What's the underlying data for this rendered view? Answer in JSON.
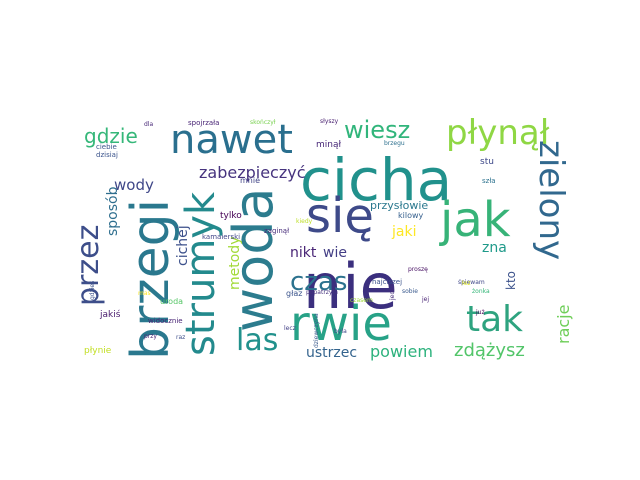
{
  "words": [
    {
      "text": "cicha",
      "color": "#21918c"
    },
    {
      "text": "nie",
      "color": "#3b2f7e"
    },
    {
      "text": "woda",
      "color": "#2c7c8e"
    },
    {
      "text": "brzegi",
      "color": "#2a788e"
    },
    {
      "text": "rwie",
      "color": "#27a287"
    },
    {
      "text": "się",
      "color": "#3e4a89"
    },
    {
      "text": "jak",
      "color": "#37b378"
    },
    {
      "text": "nawet",
      "color": "#2a6f8e"
    },
    {
      "text": "strumyk",
      "color": "#238a8d"
    },
    {
      "text": "zielony",
      "color": "#31688e"
    },
    {
      "text": "płynął",
      "color": "#8fd744"
    },
    {
      "text": "tak",
      "color": "#2ea37f"
    },
    {
      "text": "przez",
      "color": "#3d4e8a"
    },
    {
      "text": "las",
      "color": "#21918c"
    },
    {
      "text": "czas",
      "color": "#2c728e"
    },
    {
      "text": "wiesz",
      "color": "#31b57b"
    },
    {
      "text": "gdzie",
      "color": "#35b779"
    },
    {
      "text": "zdążysz",
      "color": "#52c569"
    },
    {
      "text": "zabezpieczyć",
      "color": "#46337e"
    },
    {
      "text": "racje",
      "color": "#6ece58"
    },
    {
      "text": "wody",
      "color": "#3f4788"
    },
    {
      "text": "sposób",
      "color": "#2e6e8e"
    },
    {
      "text": "cichej",
      "color": "#3c508b"
    },
    {
      "text": "metody",
      "color": "#a2da37"
    },
    {
      "text": "powiem",
      "color": "#2db27d"
    },
    {
      "text": "ustrzec",
      "color": "#33638d"
    },
    {
      "text": "nikt",
      "color": "#482475"
    },
    {
      "text": "wie",
      "color": "#433e85"
    },
    {
      "text": "jaki",
      "color": "#fde725"
    },
    {
      "text": "zna",
      "color": "#1f9a8a"
    },
    {
      "text": "kto",
      "color": "#3b518b"
    },
    {
      "text": "przysłowie",
      "color": "#2a788e"
    },
    {
      "text": "stu",
      "color": "#3e4989"
    },
    {
      "text": "kilowy",
      "color": "#355f8d"
    },
    {
      "text": "najciszej",
      "color": "#3b528b"
    },
    {
      "text": "głaz",
      "color": "#3a538b"
    },
    {
      "text": "tylko",
      "color": "#440154"
    },
    {
      "text": "mnie",
      "color": "#414487"
    },
    {
      "text": "minął",
      "color": "#482878"
    },
    {
      "text": "zaginął",
      "color": "#472c7a"
    },
    {
      "text": "kamaierski",
      "color": "#404588"
    },
    {
      "text": "kiedy",
      "color": "#bddf26"
    },
    {
      "text": "jakiś",
      "color": "#481b6d"
    },
    {
      "text": "uroda",
      "color": "#56c667"
    },
    {
      "text": "widocznie",
      "color": "#482475"
    },
    {
      "text": "płynie",
      "color": "#c2df23"
    },
    {
      "text": "ciebie",
      "color": "#3a548c"
    },
    {
      "text": "dzisiaj",
      "color": "#3a538b"
    },
    {
      "text": "spojrzała",
      "color": "#482475"
    },
    {
      "text": "skończył",
      "color": "#7ad151"
    },
    {
      "text": "słyszy",
      "color": "#481f70"
    },
    {
      "text": "dla",
      "color": "#482878"
    },
    {
      "text": "brzegu",
      "color": "#2d708e"
    },
    {
      "text": "jeden",
      "color": "#472d7b"
    },
    {
      "text": "szła",
      "color": "#2c728e"
    },
    {
      "text": "śpiewam",
      "color": "#3f4788"
    },
    {
      "text": "proszę",
      "color": "#471063"
    },
    {
      "text": "sobie",
      "color": "#38588c"
    },
    {
      "text": "jej",
      "color": "#482374"
    },
    {
      "text": "już",
      "color": "#440154"
    },
    {
      "text": "łez",
      "color": "#d8e219"
    },
    {
      "text": "czasem",
      "color": "#a0da39"
    },
    {
      "text": "popatrzyła",
      "color": "#46337e"
    },
    {
      "text": "była",
      "color": "#3e4989"
    },
    {
      "text": "dziewczyna",
      "color": "#38598c"
    },
    {
      "text": "lecz",
      "color": "#424086"
    },
    {
      "text": "gdzieś",
      "color": "#3b518b"
    },
    {
      "text": "mas",
      "color": "#fde725"
    },
    {
      "text": "przy",
      "color": "#482173"
    },
    {
      "text": "raz",
      "color": "#3d4d8a"
    },
    {
      "text": "żonka",
      "color": "#35b779"
    }
  ]
}
